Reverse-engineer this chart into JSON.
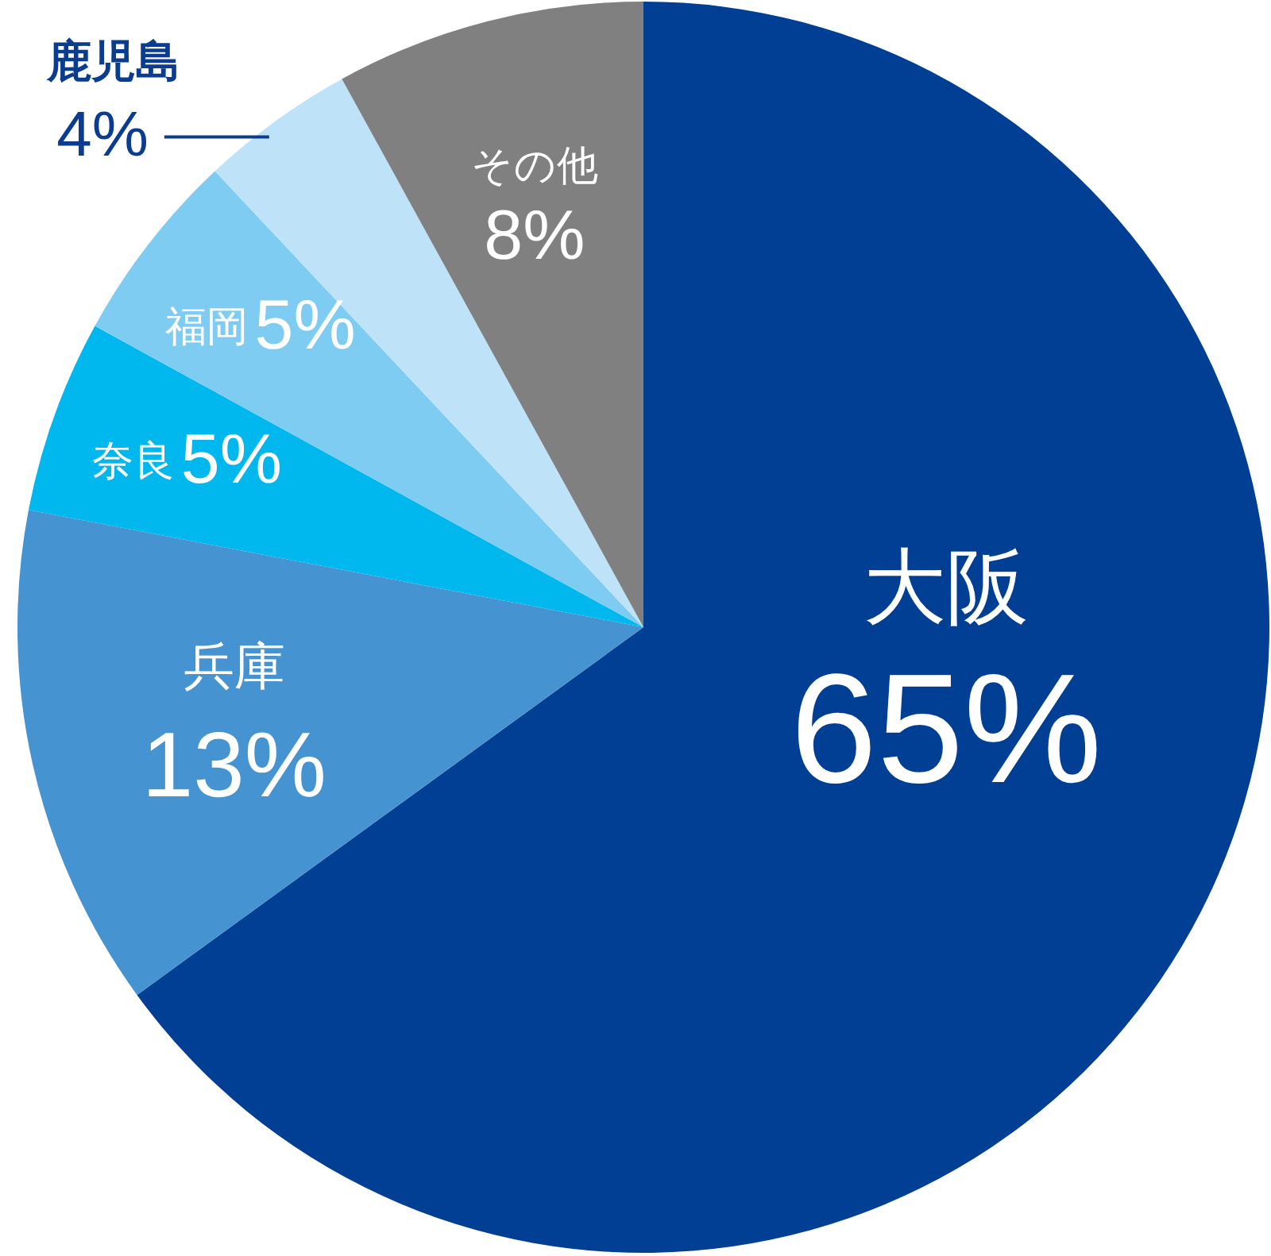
{
  "chart_data": {
    "type": "pie",
    "categories": [
      "大阪",
      "兵庫",
      "奈良",
      "福岡",
      "鹿児島",
      "その他"
    ],
    "values": [
      65,
      13,
      5,
      5,
      4,
      8
    ],
    "colors": [
      "#003f94",
      "#4693d1",
      "#00b7ee",
      "#7fccf2",
      "#bee3f8",
      "#808080"
    ],
    "value_labels": [
      "65%",
      "13%",
      "5%",
      "5%",
      "4%",
      "8%"
    ]
  }
}
